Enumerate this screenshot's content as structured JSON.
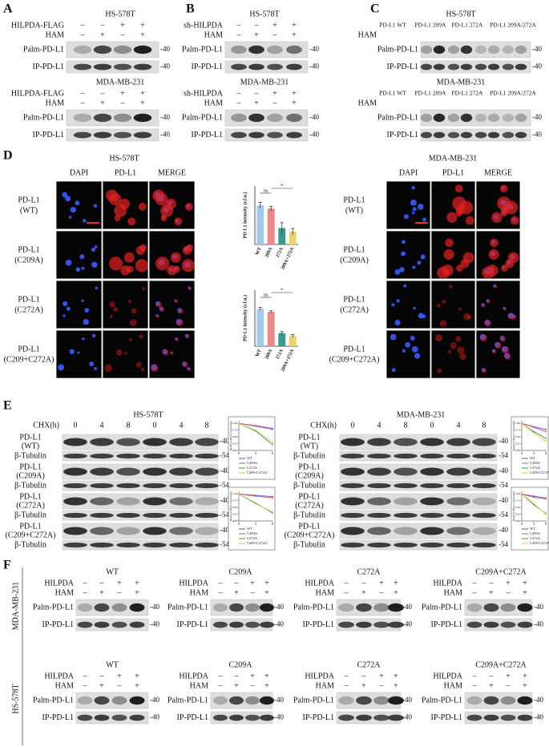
{
  "panel_a": {
    "letter": "A",
    "blocks": [
      {
        "title": "HS-578T",
        "conditions": [
          {
            "label": "HILPDA-FLAG",
            "marks": [
              "–",
              "–",
              "+",
              "+"
            ]
          },
          {
            "label": "HAM",
            "marks": [
              "–",
              "+",
              "–",
              "+"
            ]
          }
        ],
        "blots": [
          {
            "label": "Palm-PD-L1",
            "mw": "-40"
          },
          {
            "label": "IP-PD-L1",
            "mw": "-40"
          }
        ]
      },
      {
        "title": "MDA-MB-231",
        "conditions": [
          {
            "label": "HILPDA-FLAG",
            "marks": [
              "–",
              "–",
              "+",
              "+"
            ]
          },
          {
            "label": "HAM",
            "marks": [
              "–",
              "+",
              "–",
              "+"
            ]
          }
        ],
        "blots": [
          {
            "label": "Palm-PD-L1",
            "mw": "-40"
          },
          {
            "label": "IP-PD-L1",
            "mw": "-40"
          }
        ]
      }
    ]
  },
  "panel_b": {
    "letter": "B",
    "blocks": [
      {
        "title": "HS-578T",
        "conditions": [
          {
            "label": "sh-HILPDA",
            "marks": [
              "–",
              "–",
              "+",
              "+"
            ]
          },
          {
            "label": "HAM",
            "marks": [
              "–",
              "+",
              "–",
              "+"
            ]
          }
        ],
        "blots": [
          {
            "label": "Palm-PD-L1",
            "mw": "-40"
          },
          {
            "label": "IP-PD-L1",
            "mw": "-40"
          }
        ]
      },
      {
        "title": "MDA-MB-231",
        "conditions": [
          {
            "label": "sh-HILPDA",
            "marks": [
              "–",
              "–",
              "+",
              "+"
            ]
          },
          {
            "label": "HAM",
            "marks": [
              "–",
              "+",
              "–",
              "+"
            ]
          }
        ],
        "blots": [
          {
            "label": "Palm-PD-L1",
            "mw": "-40"
          },
          {
            "label": "IP-PD-L1",
            "mw": "-40"
          }
        ]
      }
    ]
  },
  "panel_c": {
    "letter": "C",
    "blocks": [
      {
        "title": "HS-578T",
        "constructs": [
          "PD-L1 WT",
          "PD-L1 209A",
          "PD-L1 272A",
          "PD-L1 209A/272A"
        ],
        "conditions": [
          {
            "label": "HAM"
          }
        ],
        "blots": [
          {
            "label": "Palm-PD-L1",
            "mw": "-40"
          },
          {
            "label": "IP-PD-L1",
            "mw": "-40"
          }
        ]
      },
      {
        "title": "MDA-MB-231",
        "constructs": [
          "PD-L1 WT",
          "PD-L1 209A",
          "PD-L1 272A",
          "PD-L1 209A/272A"
        ],
        "conditions": [
          {
            "label": "HAM"
          }
        ],
        "blots": [
          {
            "label": "Palm-PD-L1",
            "mw": "-40"
          },
          {
            "label": "IP-PD-L1",
            "mw": "-40"
          }
        ]
      }
    ]
  },
  "panel_d": {
    "letter": "D",
    "microscopy": [
      {
        "title": "HS-578T",
        "channels": [
          "DAPI",
          "PD-L1",
          "MERGE"
        ],
        "rows": [
          [
            "PD-L1",
            "(WT)"
          ],
          [
            "PD-L1",
            "(C209A)"
          ],
          [
            "PD-L1",
            "(C272A)"
          ],
          [
            "PD-L1",
            "(C209+C272A)"
          ]
        ]
      },
      {
        "title": "MDA-MB-231",
        "channels": [
          "DAPI",
          "PD-L1",
          "MERGE"
        ],
        "rows": [
          [
            "PD-L1",
            "(WT)"
          ],
          [
            "PD-L1",
            "(C209A)"
          ],
          [
            "PD-L1",
            "(C272A)"
          ],
          [
            "PD-L1",
            "(C209+C272A)"
          ]
        ]
      }
    ]
  },
  "panel_e": {
    "letter": "E",
    "blocks": [
      {
        "title": "HS-578T",
        "time_label": "CHX(h)",
        "times": [
          0,
          4,
          8,
          0,
          4,
          8
        ],
        "groups": [
          {
            "label": [
              "PD-L1",
              "(WT)"
            ],
            "mw": "-40",
            "loading": "β-Tubulin",
            "loading_mw": "-54"
          },
          {
            "label": [
              "PD-L1",
              "(C209A)"
            ],
            "mw": "-40",
            "loading": "β-Tubulin",
            "loading_mw": "-54"
          },
          {
            "label": [
              "PD-L1",
              "(C272A)"
            ],
            "mw": "-40",
            "loading": "β-Tubulin",
            "loading_mw": "-54"
          },
          {
            "label": [
              "PD-L1",
              "(C209+C272A)"
            ],
            "mw": "-40",
            "loading": "β-Tubulin",
            "loading_mw": "-54"
          }
        ]
      },
      {
        "title": "MDA-MB-231",
        "time_label": "CHX(h)",
        "times": [
          0,
          4,
          8,
          0,
          4,
          8
        ],
        "groups": [
          {
            "label": [
              "PD-L1",
              "(WT)"
            ],
            "mw": "-40",
            "loading": "β-Tubulin",
            "loading_mw": "-54"
          },
          {
            "label": [
              "PD-L1",
              "(C209A)"
            ],
            "mw": "-40",
            "loading": "β-Tubulin",
            "loading_mw": "-54"
          },
          {
            "label": [
              "PD-L1",
              "(C272A)"
            ],
            "mw": "-40",
            "loading": "β-Tubulin",
            "loading_mw": "-54"
          },
          {
            "label": [
              "PD-L1",
              "(C209+C272A)"
            ],
            "mw": "-40",
            "loading": "β-Tubulin",
            "loading_mw": "-54"
          }
        ]
      }
    ]
  },
  "panel_f": {
    "letter": "F",
    "rows": [
      {
        "cell": "MDA-MB-231",
        "blocks": [
          {
            "title": "WT",
            "conditions": [
              {
                "label": "HILPDA",
                "marks": [
                  "–",
                  "–",
                  "+",
                  "+"
                ]
              },
              {
                "label": "HAM",
                "marks": [
                  "–",
                  "+",
                  "–",
                  "+"
                ]
              }
            ],
            "blots": [
              {
                "label": "Palm-PD-L1",
                "mw": "-40"
              },
              {
                "label": "IP-PD-L1",
                "mw": "-40"
              }
            ]
          },
          {
            "title": "C209A",
            "conditions": [
              {
                "label": "HILPDA",
                "marks": [
                  "–",
                  "–",
                  "+",
                  "+"
                ]
              },
              {
                "label": "HAM",
                "marks": [
                  "–",
                  "+",
                  "–",
                  "+"
                ]
              }
            ],
            "blots": [
              {
                "label": "Palm-PD-L1",
                "mw": "-40"
              },
              {
                "label": "IP-PD-L1",
                "mw": "-40"
              }
            ]
          },
          {
            "title": "C272A",
            "conditions": [
              {
                "label": "HILPDA",
                "marks": [
                  "–",
                  "–",
                  "+",
                  "+"
                ]
              },
              {
                "label": "HAM",
                "marks": [
                  "–",
                  "+",
                  "–",
                  "+"
                ]
              }
            ],
            "blots": [
              {
                "label": "Palm-PD-L1",
                "mw": "-40"
              },
              {
                "label": "IP-PD-L1",
                "mw": "-40"
              }
            ]
          },
          {
            "title": "C209A+C272A",
            "conditions": [
              {
                "label": "HILPDA",
                "marks": [
                  "–",
                  "–",
                  "+",
                  "+"
                ]
              },
              {
                "label": "HAM",
                "marks": [
                  "–",
                  "+",
                  "–",
                  "+"
                ]
              }
            ],
            "blots": [
              {
                "label": "Palm-PD-L1",
                "mw": "-40"
              },
              {
                "label": "IP-PD-L1",
                "mw": "-40"
              }
            ]
          }
        ]
      },
      {
        "cell": "HS-578T",
        "blocks": [
          {
            "title": "WT",
            "conditions": [
              {
                "label": "HILPDA",
                "marks": [
                  "–",
                  "–",
                  "+",
                  "+"
                ]
              },
              {
                "label": "HAM",
                "marks": [
                  "–",
                  "+",
                  "–",
                  "+"
                ]
              }
            ],
            "blots": [
              {
                "label": "Palm-PD-L1",
                "mw": "-40"
              },
              {
                "label": "IP-PD-L1",
                "mw": "-40"
              }
            ]
          },
          {
            "title": "C209A",
            "conditions": [
              {
                "label": "HILPDA",
                "marks": [
                  "–",
                  "–",
                  "+",
                  "+"
                ]
              },
              {
                "label": "HAM",
                "marks": [
                  "–",
                  "+",
                  "–",
                  "+"
                ]
              }
            ],
            "blots": [
              {
                "label": "Palm-PD-L1",
                "mw": "-40"
              },
              {
                "label": "IP-PD-L1",
                "mw": "-40"
              }
            ]
          },
          {
            "title": "C272A",
            "conditions": [
              {
                "label": "HILPDA",
                "marks": [
                  "–",
                  "–",
                  "+",
                  "+"
                ]
              },
              {
                "label": "HAM",
                "marks": [
                  "–",
                  "+",
                  "–",
                  "+"
                ]
              }
            ],
            "blots": [
              {
                "label": "Palm-PD-L1",
                "mw": "-40"
              },
              {
                "label": "IP-PD-L1",
                "mw": "-40"
              }
            ]
          },
          {
            "title": "C209A+C272A",
            "conditions": [
              {
                "label": "HILPDA",
                "marks": [
                  "–",
                  "–",
                  "+",
                  "+"
                ]
              },
              {
                "label": "HAM",
                "marks": [
                  "–",
                  "+",
                  "–",
                  "+"
                ]
              }
            ],
            "blots": [
              {
                "label": "Palm-PD-L1",
                "mw": "-40"
              },
              {
                "label": "IP-PD-L1",
                "mw": "-40"
              }
            ]
          }
        ]
      }
    ]
  },
  "chart_data": [
    {
      "type": "bar",
      "ylabel": "PD-L1 intensity (r.f.u.)",
      "categories": [
        "WT",
        "209A",
        "272A",
        "209A+272A"
      ],
      "values": [
        100,
        92,
        42,
        33
      ],
      "errors": [
        8,
        6,
        14,
        8
      ],
      "colors": [
        "#a9c9e8",
        "#e88b86",
        "#3a9a8c",
        "#e8d36a"
      ],
      "ylim": [
        0,
        150
      ],
      "annotations": [
        "ns",
        "*"
      ]
    },
    {
      "type": "bar",
      "ylabel": "PD-L1 intensity (r.f.u.)",
      "categories": [
        "WT",
        "209A",
        "272A",
        "209A+272A"
      ],
      "values": [
        100,
        92,
        35,
        27
      ],
      "errors": [
        4,
        3,
        4,
        4
      ],
      "colors": [
        "#a9c9e8",
        "#e88b86",
        "#3a9a8c",
        "#e8d36a"
      ],
      "ylim": [
        0,
        150
      ],
      "annotations": [
        "ns",
        "*"
      ]
    },
    {
      "type": "line",
      "ylabel": "Relative PD-L1 remaining",
      "x": [
        0,
        4,
        8
      ],
      "xlim": [
        0,
        8
      ],
      "xticks": [
        0,
        4,
        8
      ],
      "ylim": [
        0,
        1.1
      ],
      "yticks": [
        {
          "value": 0,
          "label": "0.00"
        },
        {
          "value": 0.25,
          "label": "0.25"
        },
        {
          "value": 0.5,
          "label": "0.50"
        },
        {
          "value": 0.75,
          "label": "0.75"
        },
        {
          "value": 1,
          "label": "1.00"
        }
      ],
      "series": [
        {
          "name": "WT",
          "color": "#3b5bdb",
          "values": [
            1,
            0.92,
            0.82
          ]
        },
        {
          "name": "C209A",
          "color": "#e04a6a",
          "values": [
            1,
            0.9,
            0.78
          ]
        },
        {
          "name": "C272A",
          "color": "#2e9e5a",
          "values": [
            1,
            0.72,
            0.22
          ]
        },
        {
          "name": "C209+C272A",
          "color": "#e8c84a",
          "values": [
            1,
            0.75,
            0.3
          ]
        }
      ]
    },
    {
      "type": "line",
      "ylabel": "Relative PD-L1 remaining",
      "x": [
        0,
        4,
        8
      ],
      "xlim": [
        0,
        8
      ],
      "xticks": [
        0,
        4,
        8
      ],
      "ylim": [
        0,
        1.1
      ],
      "yticks": [
        {
          "value": 0,
          "label": "0.00"
        },
        {
          "value": 0.25,
          "label": "0.25"
        },
        {
          "value": 0.5,
          "label": "0.50"
        },
        {
          "value": 0.75,
          "label": "0.75"
        },
        {
          "value": 1,
          "label": "1.00"
        }
      ],
      "series": [
        {
          "name": "WT",
          "color": "#3b5bdb",
          "values": [
            1,
            0.95,
            0.9
          ]
        },
        {
          "name": "C209A",
          "color": "#e04a6a",
          "values": [
            1,
            0.92,
            0.86
          ]
        },
        {
          "name": "C272A",
          "color": "#2e9e5a",
          "values": [
            1,
            0.65,
            0.32
          ]
        },
        {
          "name": "C209+C272A",
          "color": "#e8c84a",
          "values": [
            1,
            0.68,
            0.28
          ]
        }
      ]
    },
    {
      "type": "line",
      "ylabel": "Relative PD-L1 remaining",
      "x": [
        0,
        4,
        8
      ],
      "xlim": [
        0,
        8
      ],
      "xticks": [
        0,
        4,
        8
      ],
      "ylim": [
        0,
        1.1
      ],
      "yticks": [
        {
          "value": 0,
          "label": "0.00"
        },
        {
          "value": 0.25,
          "label": "0.25"
        },
        {
          "value": 0.5,
          "label": "0.50"
        },
        {
          "value": 0.75,
          "label": "0.75"
        },
        {
          "value": 1,
          "label": "1.00"
        }
      ],
      "series": [
        {
          "name": "WT",
          "color": "#3b5bdb",
          "values": [
            1,
            0.88,
            0.78
          ]
        },
        {
          "name": "C209A",
          "color": "#e04a6a",
          "values": [
            1,
            0.86,
            0.7
          ]
        },
        {
          "name": "C272A",
          "color": "#2e9e5a",
          "values": [
            1,
            0.7,
            0.45
          ]
        },
        {
          "name": "C209+C272A",
          "color": "#e8c84a",
          "values": [
            1,
            0.65,
            0.35
          ]
        }
      ]
    },
    {
      "type": "line",
      "ylabel": "Relative PD-L1 remaining",
      "x": [
        0,
        4,
        8
      ],
      "xlim": [
        0,
        8
      ],
      "xticks": [
        0,
        4,
        8
      ],
      "ylim": [
        0,
        1.1
      ],
      "yticks": [
        {
          "value": 0,
          "label": "0.00"
        },
        {
          "value": 0.25,
          "label": "0.25"
        },
        {
          "value": 0.5,
          "label": "0.50"
        },
        {
          "value": 0.75,
          "label": "0.75"
        },
        {
          "value": 1,
          "label": "1.00"
        }
      ],
      "series": [
        {
          "name": "WT",
          "color": "#3b5bdb",
          "values": [
            1,
            0.92,
            0.85
          ]
        },
        {
          "name": "C209A",
          "color": "#e04a6a",
          "values": [
            1,
            0.88,
            0.82
          ]
        },
        {
          "name": "C272A",
          "color": "#2e9e5a",
          "values": [
            1,
            0.6,
            0.28
          ]
        },
        {
          "name": "C209+C272A",
          "color": "#e8c84a",
          "values": [
            1,
            0.65,
            0.25
          ]
        }
      ]
    }
  ]
}
